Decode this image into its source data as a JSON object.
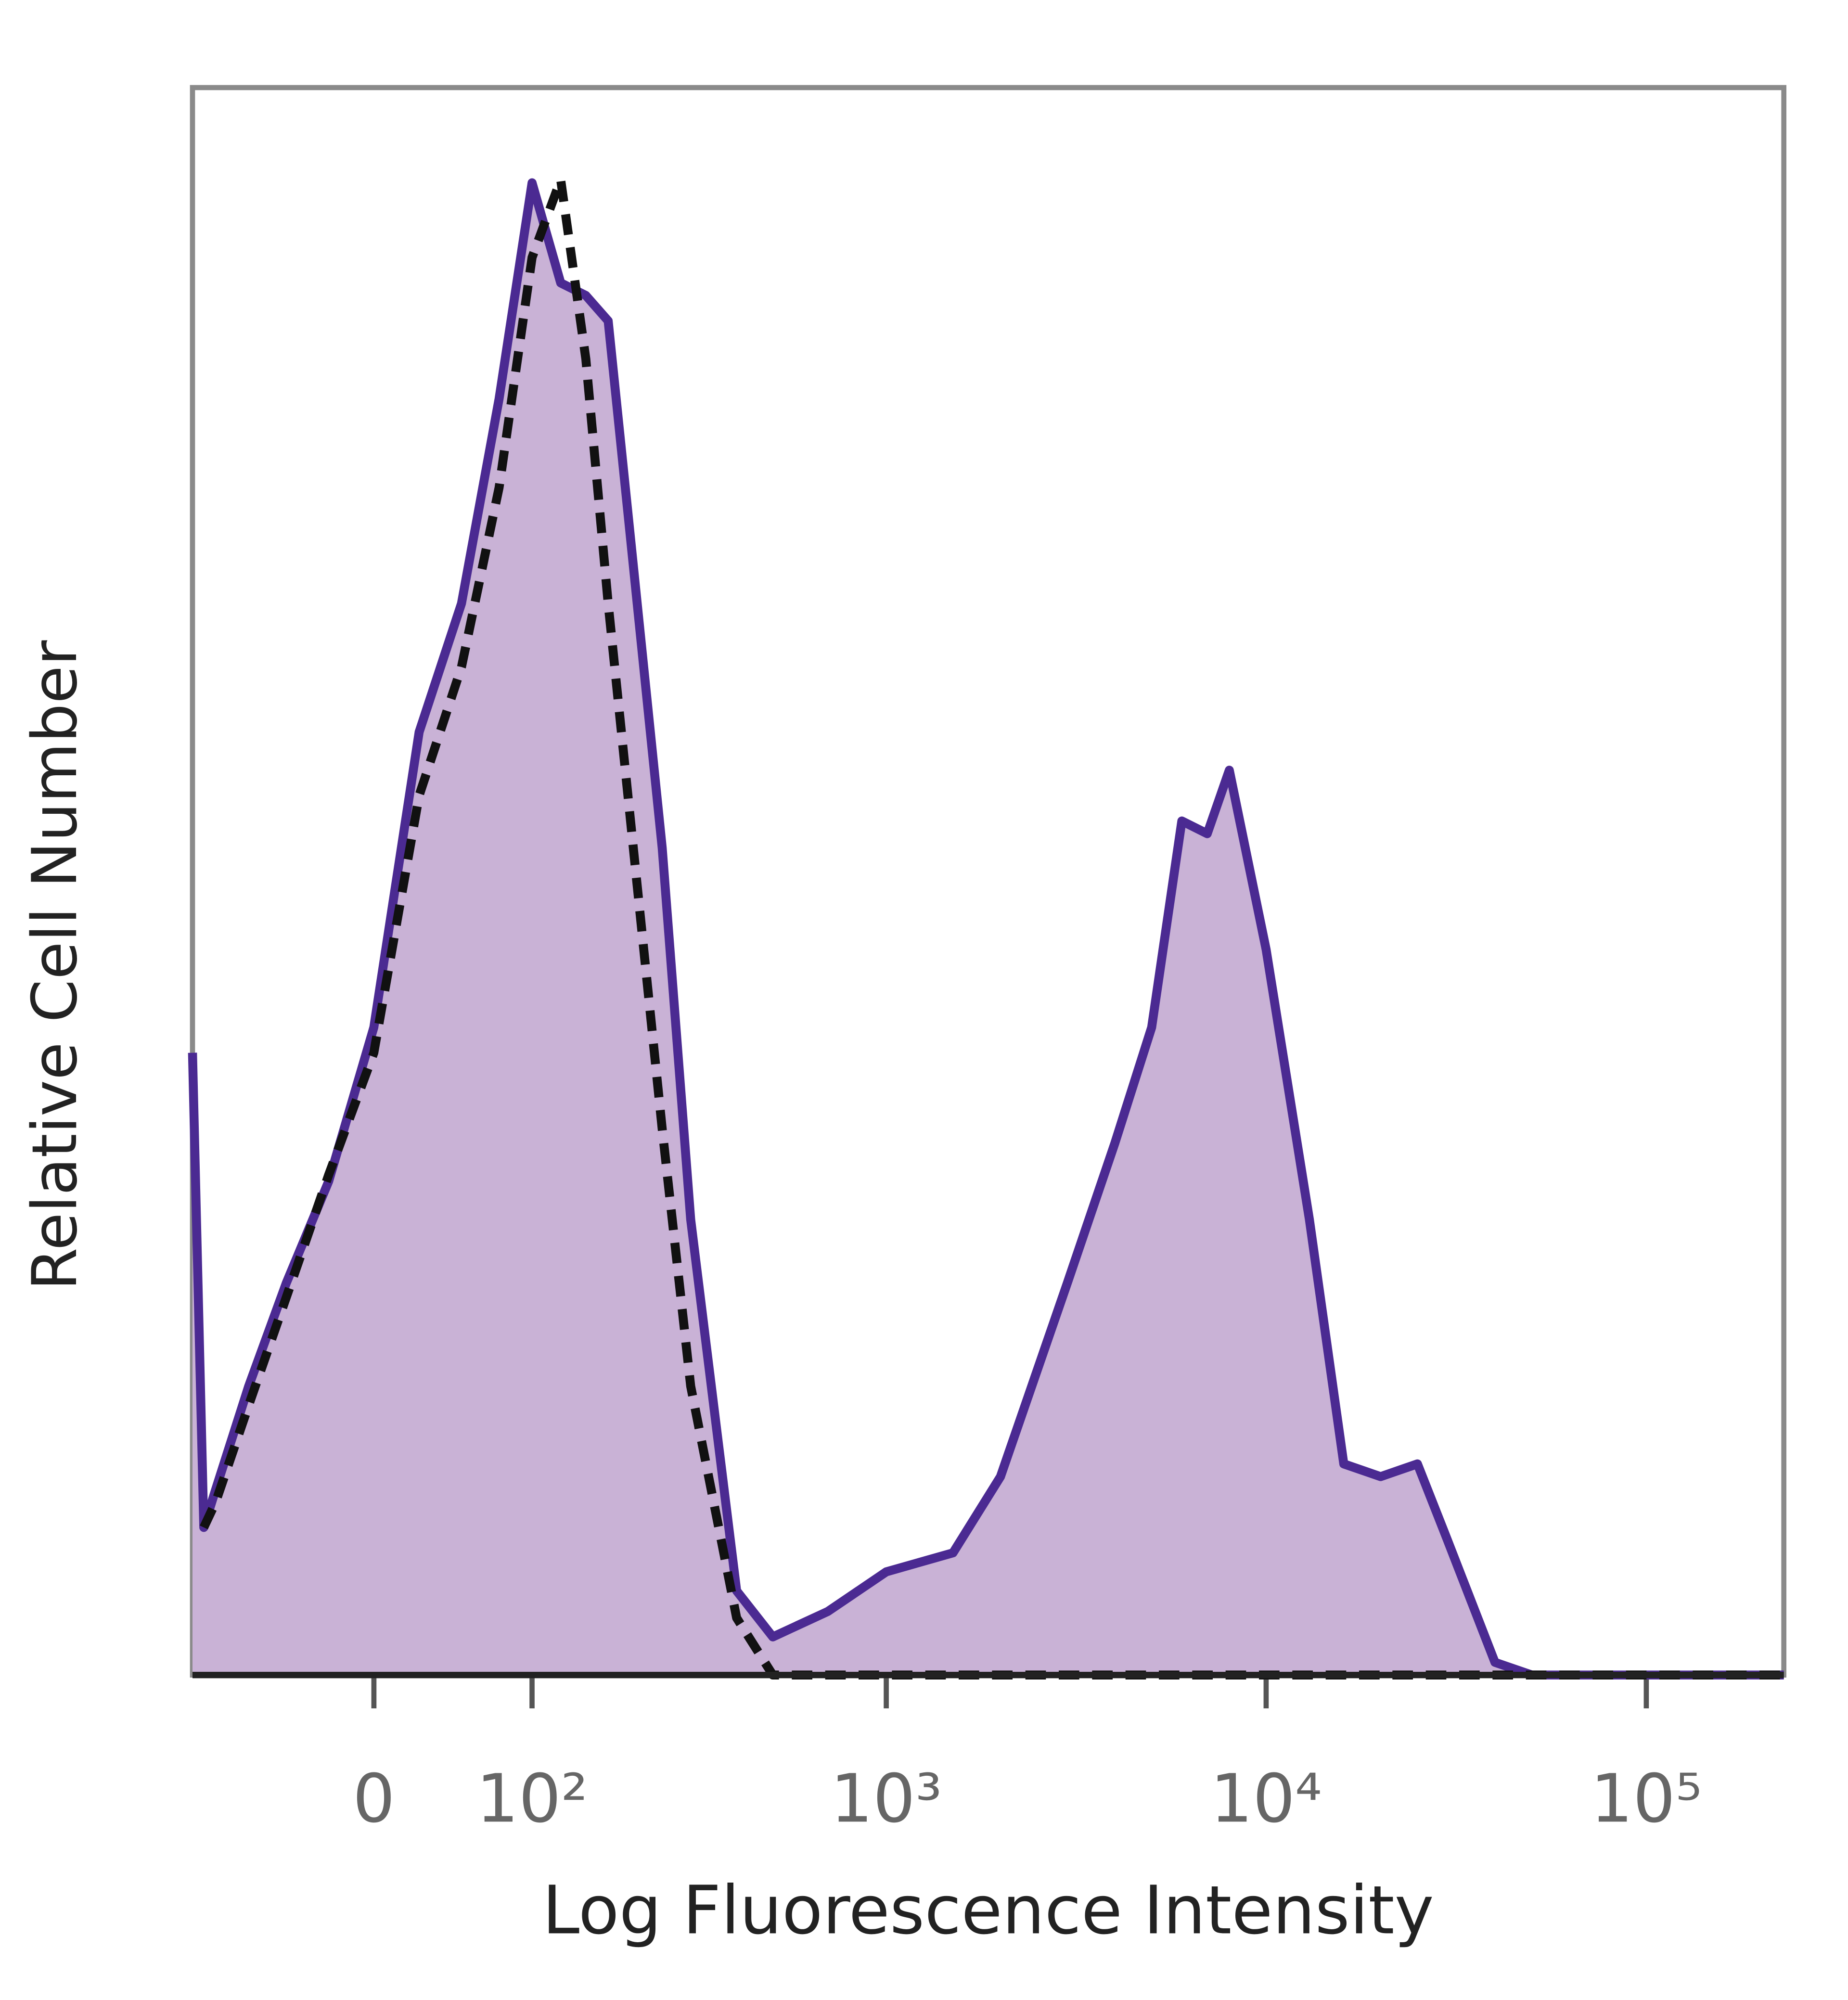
{
  "chart_data": {
    "type": "histogram-line",
    "x_label": "Log Fluorescence Intensity",
    "y_label": "Relative Cell Number",
    "xscale": "asinh",
    "xscale_cofactor": 90,
    "xlim": [
      -120,
      230000
    ],
    "ylim": [
      0,
      100
    ],
    "xticks": [
      0,
      {
        "value": 100,
        "label": "10²"
      },
      {
        "value": 1000,
        "label": "10³"
      },
      {
        "value": 10000,
        "label": "10⁴"
      },
      {
        "value": 100000,
        "label": "10⁵"
      }
    ],
    "x": [
      -120,
      -110,
      -100,
      -75,
      -50,
      -25,
      0,
      25,
      50,
      75,
      100,
      125,
      150,
      175,
      200,
      250,
      300,
      400,
      500,
      700,
      1000,
      1500,
      2000,
      3000,
      4000,
      5000,
      6000,
      7000,
      8000,
      10000,
      13000,
      16000,
      20000,
      25000,
      30000,
      40000,
      50000,
      100000,
      230000
    ],
    "series": [
      {
        "color": "#4b2a92",
        "fill": "#c9b2d6",
        "dashed": false,
        "values": [
          39.2,
          9.3,
          11.7,
          18.2,
          24.7,
          31.1,
          40.8,
          59.4,
          67.5,
          80.4,
          94,
          87.7,
          86.9,
          85.3,
          73.2,
          52.1,
          28.7,
          5.3,
          2.4,
          4.0,
          6.5,
          7.7,
          12.5,
          24.7,
          33.5,
          40.8,
          53.8,
          53,
          57,
          45.7,
          28.7,
          13.3,
          12.5,
          13.3,
          8.5,
          0.8,
          0,
          0,
          0
        ]
      },
      {
        "color": "#111111",
        "fill": null,
        "dashed": true,
        "values": [
          null,
          9.3,
          10.9,
          17.0,
          23.8,
          31.5,
          39.2,
          55.4,
          63.5,
          74.8,
          89.3,
          94.2,
          82.9,
          67.5,
          55.4,
          34.4,
          18.2,
          3.6,
          0,
          0,
          0,
          0,
          0,
          0,
          0,
          0,
          0,
          0,
          0,
          0,
          0,
          0,
          0,
          0,
          0,
          0,
          0,
          0,
          0
        ]
      }
    ]
  }
}
